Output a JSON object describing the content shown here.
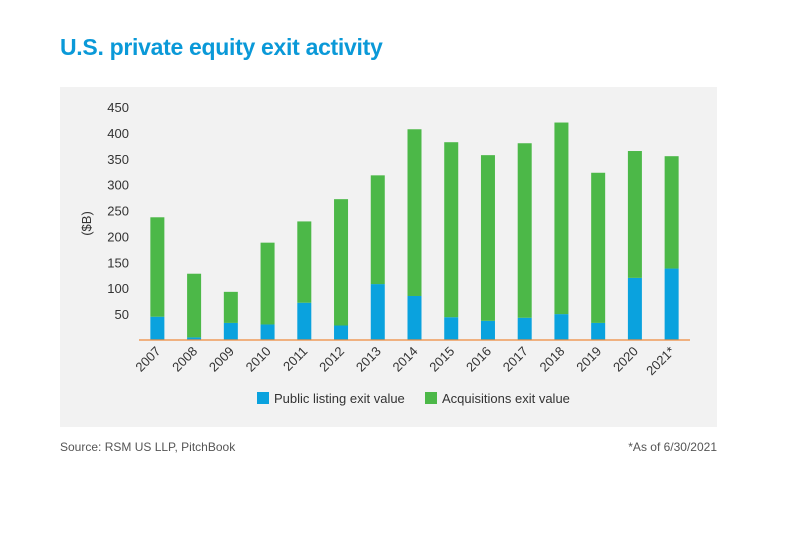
{
  "title": "U.S. private equity exit activity",
  "source": "Source: RSM US LLP, PitchBook",
  "footnote": "*As of 6/30/2021",
  "colors": {
    "title": "#0a99d8",
    "public": "#0aa2de",
    "acquisitions": "#4cb848",
    "panel": "#f2f2f2",
    "axis": "#f08a3c"
  },
  "chart_data": {
    "type": "bar",
    "stacked": true,
    "title": "",
    "xlabel": "",
    "ylabel": "($B)",
    "ylim": [
      0,
      450
    ],
    "yticks": [
      50,
      100,
      150,
      200,
      250,
      300,
      350,
      400,
      450
    ],
    "grid": false,
    "legend": "bottom",
    "categories": [
      "2007",
      "2008",
      "2009",
      "2010",
      "2011",
      "2012",
      "2013",
      "2014",
      "2015",
      "2016",
      "2017",
      "2018",
      "2019",
      "2020",
      "2021*"
    ],
    "series": [
      {
        "name": "Public listing exit value",
        "color": "#0aa2de",
        "values": [
          45,
          5,
          33,
          30,
          72,
          28,
          108,
          85,
          44,
          37,
          43,
          50,
          33,
          120,
          138
        ]
      },
      {
        "name": "Acquisitions exit value",
        "color": "#4cb848",
        "values": [
          192,
          123,
          60,
          158,
          157,
          244,
          210,
          322,
          338,
          320,
          337,
          370,
          290,
          245,
          217
        ]
      }
    ]
  }
}
